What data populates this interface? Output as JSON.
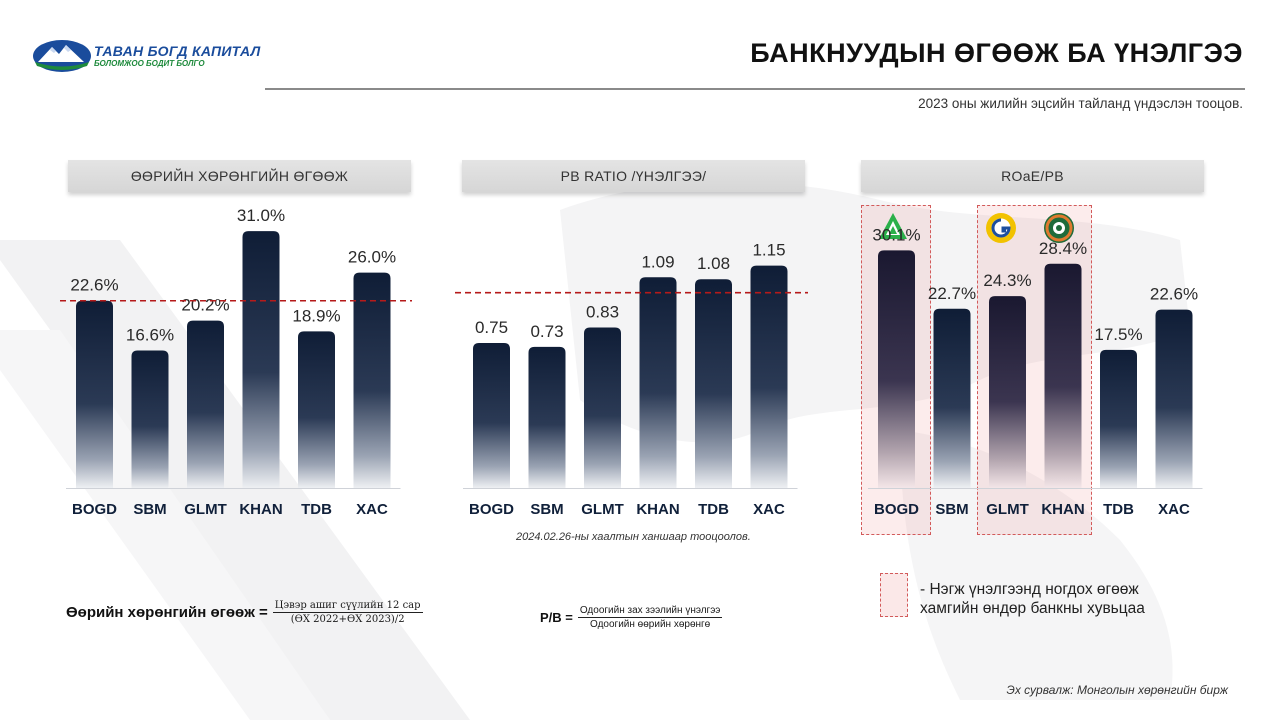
{
  "header": {
    "logo": {
      "brand": "ТАВАН БОГД КАПИТАЛ",
      "tagline": "БОЛОМЖОО БОДИТ БОЛГО",
      "icon": "mountain-logo-icon"
    },
    "title": "БАНКНУУДЫН ӨГӨӨЖ БА ҮНЭЛГЭЭ",
    "subtitle": "2023 оны жилийн эцсийн тайланд үндэслэн тооцов."
  },
  "colors": {
    "bar_top": "#0f1d36",
    "bar_bottom": "#d8dbe2",
    "reference_line": "#b51a1a",
    "highlight": "#f2caca"
  },
  "panels": [
    {
      "header": "ӨӨРИЙН ХӨРӨНГИЙН ӨГӨӨЖ"
    },
    {
      "header": "PB RATIO /ҮНЭЛГЭЭ/",
      "note": "2024.02.26-ны хаалтын ханшаар тооцоолов."
    },
    {
      "header": "ROaE/PB"
    }
  ],
  "chart_data": [
    {
      "type": "bar",
      "title": "ӨӨРИЙН ХӨРӨНГИЙН ӨГӨӨЖ",
      "categories": [
        "BOGD",
        "SBM",
        "GLMT",
        "KHAN",
        "TDB",
        "XAC"
      ],
      "values": [
        22.6,
        16.6,
        20.2,
        31.0,
        18.9,
        26.0
      ],
      "labels": [
        "22.6%",
        "16.6%",
        "20.2%",
        "31.0%",
        "18.9%",
        "26.0%"
      ],
      "unit": "%",
      "reference_line": 22.6,
      "ylim": [
        0,
        35
      ]
    },
    {
      "type": "bar",
      "title": "PB RATIO /ҮНЭЛГЭЭ/",
      "categories": [
        "BOGD",
        "SBM",
        "GLMT",
        "KHAN",
        "TDB",
        "XAC"
      ],
      "values": [
        0.75,
        0.73,
        0.83,
        1.09,
        1.08,
        1.15
      ],
      "labels": [
        "0.75",
        "0.73",
        "0.83",
        "1.09",
        "1.08",
        "1.15"
      ],
      "reference_line": 1.01,
      "ylim": [
        0,
        1.5
      ]
    },
    {
      "type": "bar",
      "title": "ROaE/PB",
      "categories": [
        "BOGD",
        "SBM",
        "GLMT",
        "KHAN",
        "TDB",
        "XAC"
      ],
      "values": [
        30.1,
        22.7,
        24.3,
        28.4,
        17.5,
        22.6
      ],
      "labels": [
        "30.1%",
        "22.7%",
        "24.3%",
        "28.4%",
        "17.5%",
        "22.6%"
      ],
      "unit": "%",
      "ylim": [
        0,
        38
      ],
      "highlighted": [
        "BOGD",
        "GLMT",
        "KHAN"
      ],
      "icons": [
        "bogd-logo-icon",
        "golomt-logo-icon",
        "khan-logo-icon"
      ]
    }
  ],
  "legend": {
    "text": "- Нэгж үнэлгээнд ногдох өгөөж хамгийн өндөр банкны хувьцаа"
  },
  "formulas": {
    "roe": {
      "lhs": "Өөрийн хөрөнгийн өгөөж =",
      "numerator": "Цэвэр ашиг сүүлийн 12 сар",
      "denominator": "(ӨХ 2022+ӨХ 2023)/2"
    },
    "pb": {
      "lhs": "P/B =",
      "numerator": "Одоогийн зах зээлийн үнэлгээ",
      "denominator": "Одоогийн өөрийн хөрөнгө"
    }
  },
  "source": "Эх сурвалж: Монголын хөрөнгийн бирж"
}
